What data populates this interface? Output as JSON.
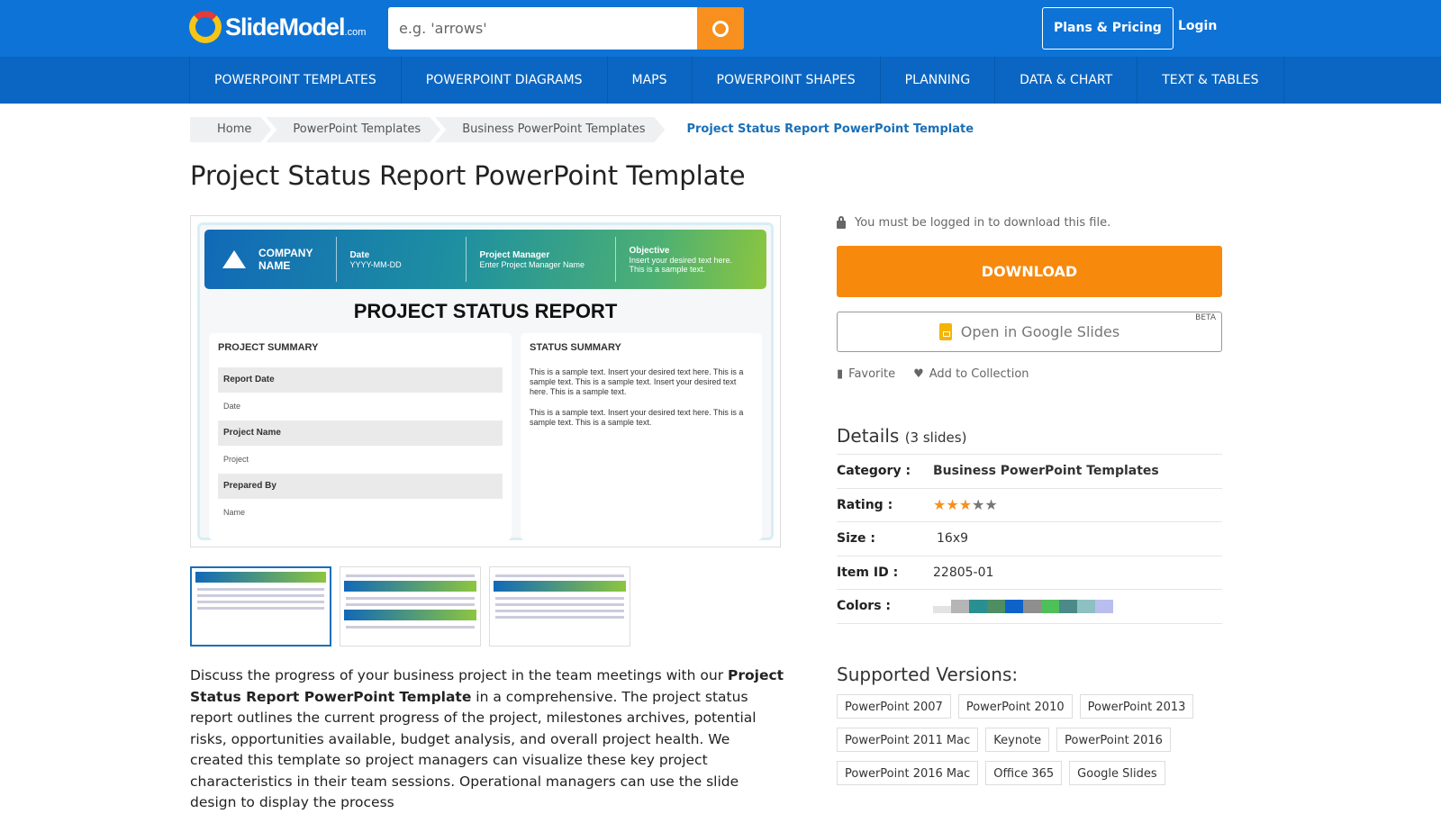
{
  "header": {
    "logo": "SlideModel",
    "logo_suffix": ".com",
    "search_placeholder": "e.g. 'arrows'",
    "plans": "Plans & Pricing",
    "login": "Login"
  },
  "nav": [
    "POWERPOINT TEMPLATES",
    "POWERPOINT DIAGRAMS",
    "MAPS",
    "POWERPOINT SHAPES",
    "PLANNING",
    "DATA & CHART",
    "TEXT & TABLES"
  ],
  "breadcrumb": [
    "Home",
    "PowerPoint Templates",
    "Business PowerPoint Templates",
    "Project Status Report PowerPoint Template"
  ],
  "title": "Project Status Report PowerPoint Template",
  "slide": {
    "company": "COMPANY",
    "company2": "NAME",
    "date_label": "Date",
    "date_value": "YYYY-MM-DD",
    "pm_label": "Project Manager",
    "pm_value": "Enter Project Manager Name",
    "obj_label": "Objective",
    "obj_value": "Insert your desired text here. This is a sample text.",
    "heading": "PROJECT STATUS REPORT",
    "summary_title": "PROJECT SUMMARY",
    "rows": [
      [
        "Report Date",
        "Date"
      ],
      [
        "Project Name",
        "Project"
      ],
      [
        "Prepared By",
        "Name"
      ]
    ],
    "status_title": "STATUS SUMMARY",
    "status_p1": "This is a sample text. Insert your desired text here. This is a sample text. This is a sample text. Insert your desired text here. This is a sample text.",
    "status_p2": "This is a sample text. Insert your desired text here. This is a sample text. This is a sample text."
  },
  "description": {
    "pre": "Discuss the progress of your business project in the team meetings with our ",
    "bold": "Project Status Report PowerPoint Template",
    "post": " in a comprehensive. The project status report outlines the current progress of the project, milestones archives, potential risks, opportunities available, budget analysis, and overall project health. We created this template so project managers can visualize these key project characteristics in their team sessions. Operational managers can use the slide design to display the process"
  },
  "sidebar": {
    "login_notice": "You must be logged in to download this file.",
    "download": "DOWNLOAD",
    "google_slides": "Open in Google Slides",
    "beta": "BETA",
    "favorite": "Favorite",
    "add_collection": "Add to Collection"
  },
  "details": {
    "title": "Details",
    "slides": "(3 slides)",
    "category_label": "Category :",
    "category": "Business PowerPoint Templates",
    "rating_label": "Rating :",
    "rating": 3,
    "rating_max": 5,
    "size_label": "Size :",
    "size": "16x9",
    "item_label": "Item ID :",
    "item_id": "22805-01",
    "colors_label": "Colors :",
    "colors": [
      "#e3e3e3",
      "#b5b5b5",
      "#2a8f91",
      "#4f8d62",
      "#0f63c8",
      "#8e8e8e",
      "#4fbf5a",
      "#4b8a88",
      "#8ec0c2",
      "#b8bfee"
    ]
  },
  "versions": {
    "title": "Supported Versions:",
    "items": [
      "PowerPoint 2007",
      "PowerPoint 2010",
      "PowerPoint 2013",
      "PowerPoint 2011 Mac",
      "Keynote",
      "PowerPoint 2016",
      "PowerPoint 2016 Mac",
      "Office 365",
      "Google Slides"
    ]
  }
}
